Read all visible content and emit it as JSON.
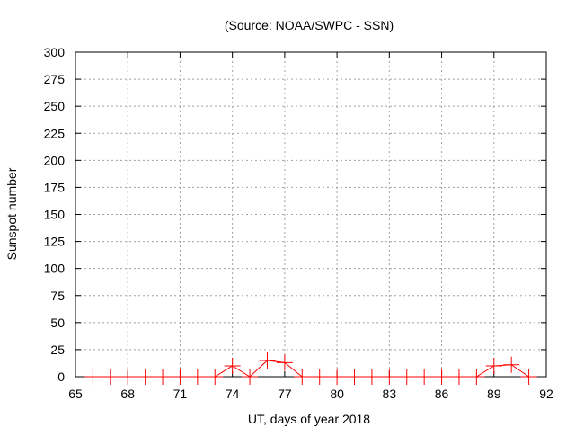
{
  "chart_data": {
    "type": "line",
    "title": "(Source: NOAA/SWPC - SSN)",
    "xlabel": "UT, days of year 2018",
    "ylabel": "Sunspot number",
    "xlim": [
      65,
      92
    ],
    "ylim": [
      0,
      300
    ],
    "xticks": [
      65,
      68,
      71,
      74,
      77,
      80,
      83,
      86,
      89,
      92
    ],
    "yticks": [
      0,
      25,
      50,
      75,
      100,
      125,
      150,
      175,
      200,
      225,
      250,
      275,
      300
    ],
    "grid": true,
    "series": [
      {
        "name": "SSN",
        "color": "#ff0000",
        "x": [
          66,
          67,
          68,
          69,
          70,
          71,
          72,
          73,
          74,
          75,
          76,
          77,
          78,
          79,
          80,
          81,
          82,
          83,
          84,
          85,
          86,
          87,
          88,
          89,
          90,
          91
        ],
        "y": [
          0,
          0,
          0,
          0,
          0,
          0,
          0,
          0,
          10,
          0,
          15,
          13,
          0,
          0,
          0,
          0,
          0,
          0,
          0,
          0,
          0,
          0,
          0,
          10,
          11,
          0
        ]
      }
    ]
  }
}
